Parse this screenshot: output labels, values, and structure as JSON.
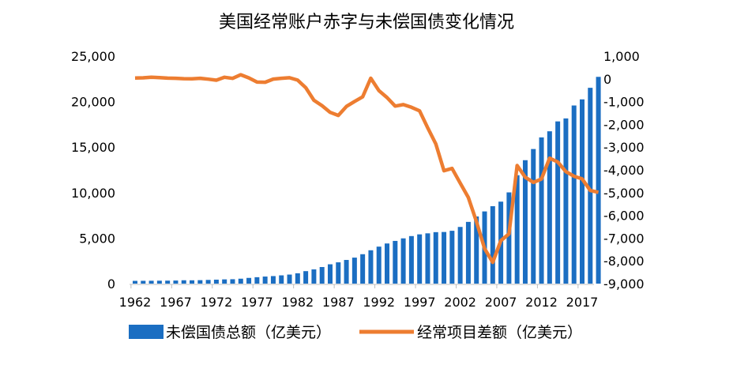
{
  "chart_data": {
    "type": "bar+line",
    "title": "美国经常账户赤字与未偿国债变化情况",
    "x": [
      1962,
      1963,
      1964,
      1965,
      1966,
      1967,
      1968,
      1969,
      1970,
      1971,
      1972,
      1973,
      1974,
      1975,
      1976,
      1977,
      1978,
      1979,
      1980,
      1981,
      1982,
      1983,
      1984,
      1985,
      1986,
      1987,
      1988,
      1989,
      1990,
      1991,
      1992,
      1993,
      1994,
      1995,
      1996,
      1997,
      1998,
      1999,
      2000,
      2001,
      2002,
      2003,
      2004,
      2005,
      2006,
      2007,
      2008,
      2009,
      2010,
      2011,
      2012,
      2013,
      2014,
      2015,
      2016,
      2017,
      2018,
      2019
    ],
    "x_tick_labels": [
      "1962",
      "1967",
      "1972",
      "1977",
      "1982",
      "1987",
      "1992",
      "1997",
      "2002",
      "2007",
      "2012",
      "2017"
    ],
    "left_axis": {
      "ylim": [
        0,
        25000
      ],
      "tick_labels": [
        "0",
        "5,000",
        "10,000",
        "15,000",
        "20,000",
        "25,000"
      ]
    },
    "right_axis": {
      "ylim": [
        -9000,
        1000
      ],
      "tick_labels": [
        "-9,000",
        "-8,000",
        "-7,000",
        "-6,000",
        "-5,000",
        "-4,000",
        "-3,000",
        "-2,000",
        "-1,000",
        "0",
        "1,000"
      ]
    },
    "grid": false,
    "legend_position": "bottom",
    "series": [
      {
        "name": "未偿国债总额（亿美元）",
        "type": "bar",
        "axis": "left",
        "color": "#1B6EC2",
        "values": [
          303,
          310,
          316,
          322,
          328,
          341,
          370,
          366,
          381,
          408,
          436,
          466,
          484,
          542,
          629,
          706,
          777,
          829,
          909,
          995,
          1137,
          1372,
          1565,
          1823,
          2125,
          2340,
          2602,
          2857,
          3233,
          3665,
          4065,
          4411,
          4693,
          4974,
          5225,
          5413,
          5526,
          5656,
          5674,
          5807,
          6228,
          6783,
          7379,
          7933,
          8507,
          9008,
          10025,
          11910,
          13562,
          14790,
          16066,
          16738,
          17824,
          18151,
          19573,
          20245,
          21516,
          22719
        ]
      },
      {
        "name": "经常项目差额（亿美元）",
        "type": "line",
        "axis": "right",
        "color": "#ED7D31",
        "values": [
          35,
          44,
          68,
          54,
          31,
          26,
          6,
          4,
          23,
          -14,
          -58,
          71,
          20,
          181,
          43,
          -144,
          -150,
          -10,
          23,
          50,
          -55,
          -388,
          -940,
          -1182,
          -1472,
          -1609,
          -1213,
          -994,
          -790,
          29,
          -516,
          -822,
          -1199,
          -1131,
          -1249,
          -1406,
          -2153,
          -2865,
          -4037,
          -3938,
          -4581,
          -5213,
          -6276,
          -7457,
          -8066,
          -7111,
          -6812,
          -3808,
          -4323,
          -4552,
          -4401,
          -3485,
          -3652,
          -4078,
          -4282,
          -4395,
          -4905,
          -4986
        ]
      }
    ]
  }
}
